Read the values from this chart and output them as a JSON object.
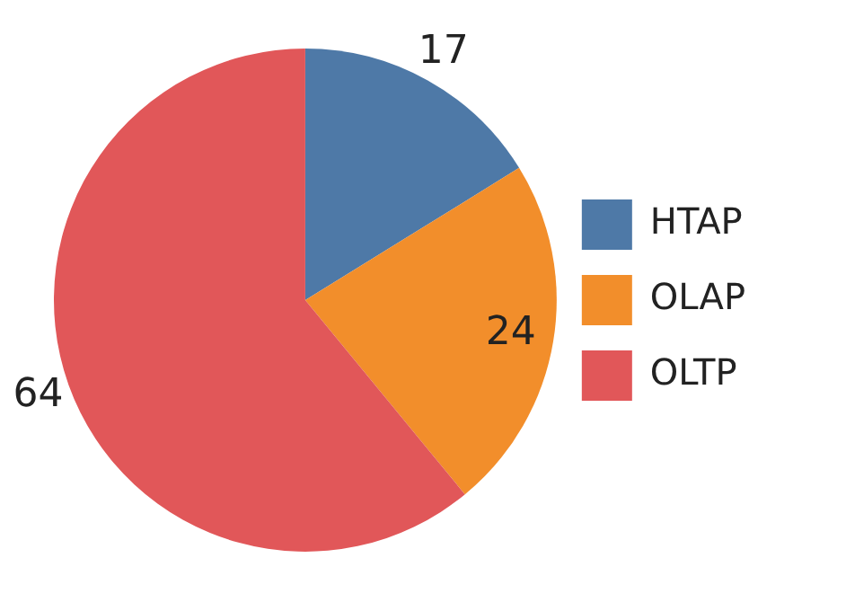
{
  "chart_data": {
    "type": "pie",
    "categories": [
      "HTAP",
      "OLAP",
      "OLTP"
    ],
    "values": [
      17,
      24,
      64
    ],
    "colors": [
      "#4e79a7",
      "#f28e2b",
      "#e15759"
    ],
    "data_labels": true,
    "legend": "right"
  }
}
